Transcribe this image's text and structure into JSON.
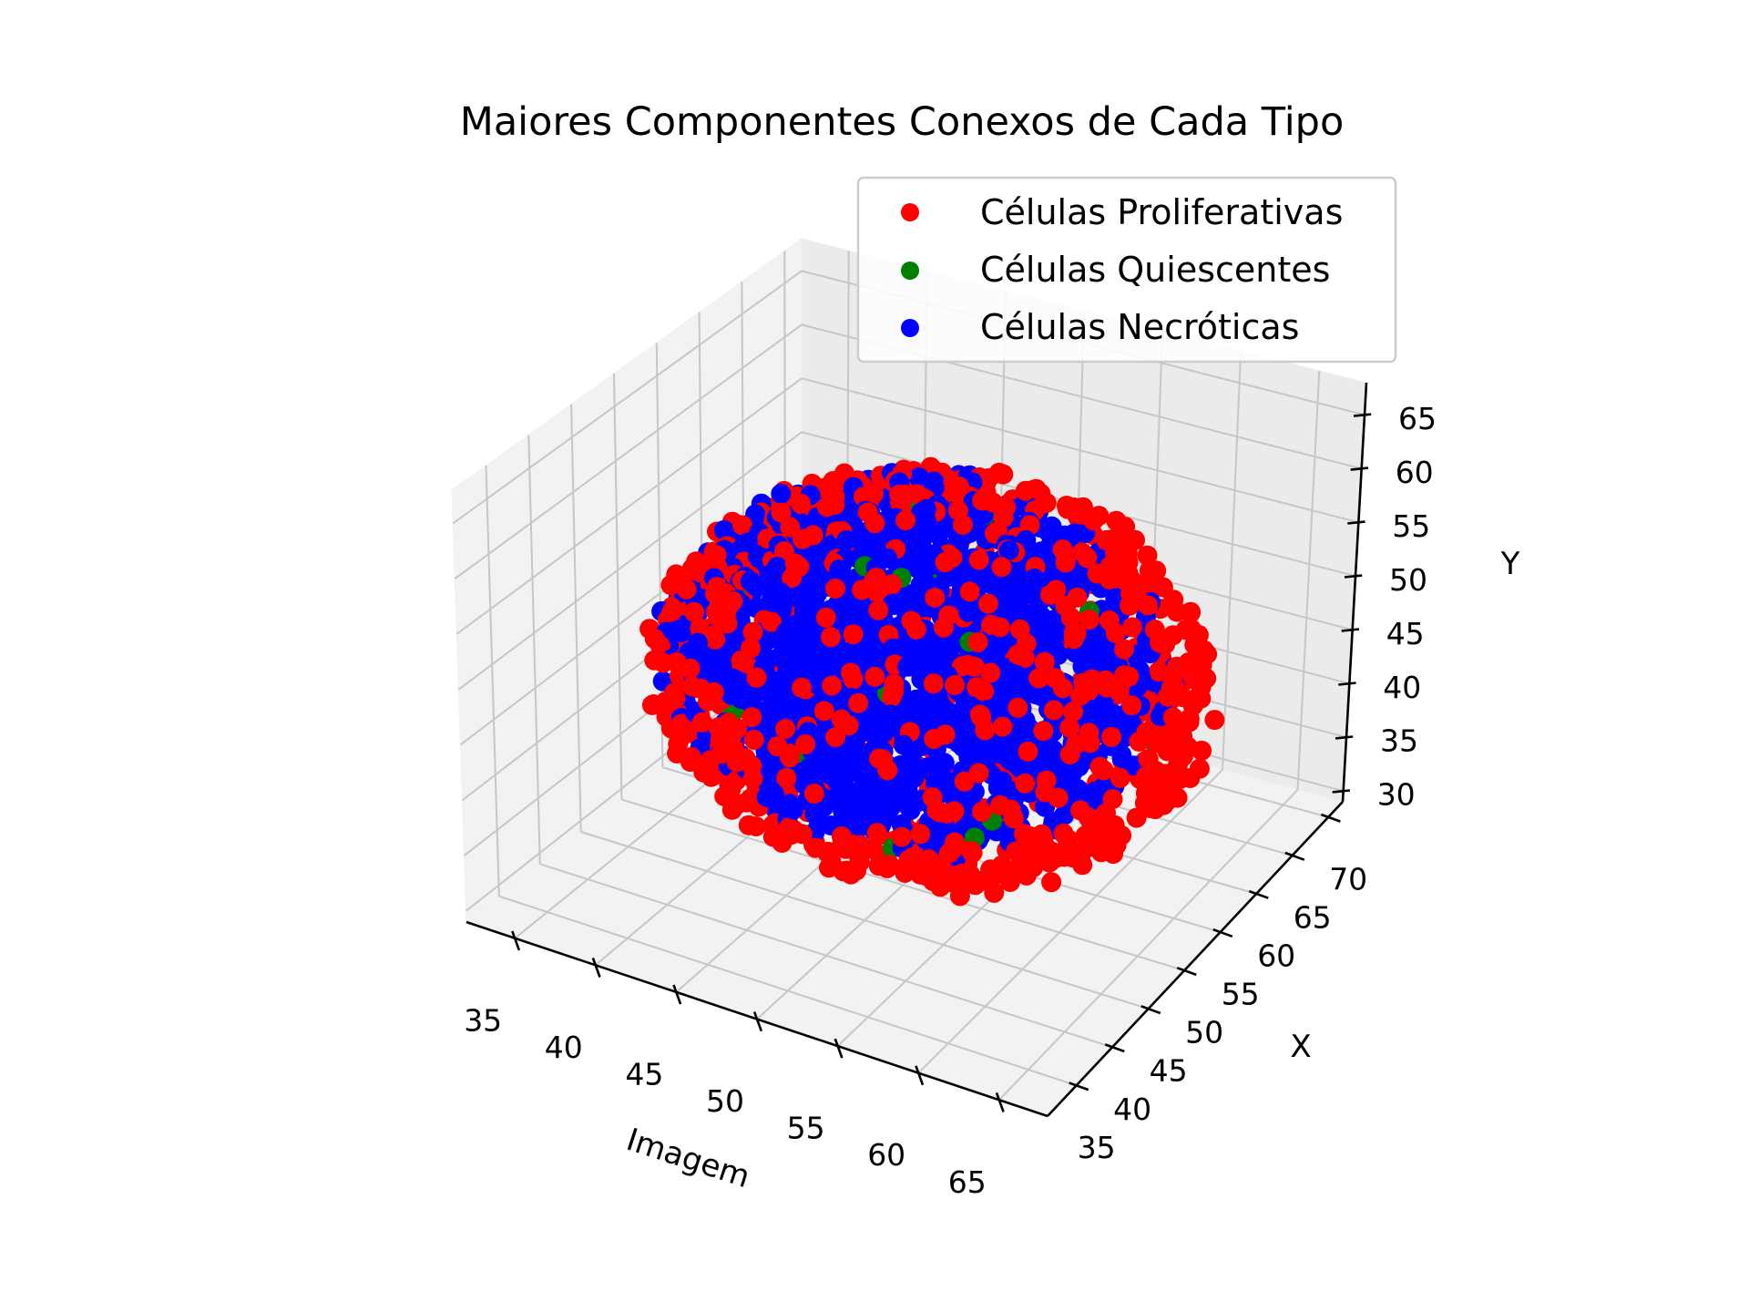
{
  "chart_data": {
    "type": "scatter",
    "projection": "3d",
    "title": "Maiores Componentes Conexos de Cada Tipo",
    "axes": {
      "x": {
        "label": "Imagem",
        "range": [
          32,
          68
        ],
        "ticks": [
          "35",
          "40",
          "45",
          "50",
          "55",
          "60",
          "65"
        ],
        "tick_values": [
          35,
          40,
          45,
          50,
          55,
          60,
          65
        ]
      },
      "y": {
        "label": "X",
        "range": [
          31,
          72
        ],
        "ticks": [
          "35",
          "40",
          "45",
          "50",
          "55",
          "60",
          "65",
          "70"
        ],
        "tick_values": [
          35,
          40,
          45,
          50,
          55,
          60,
          65,
          70
        ]
      },
      "z": {
        "label": "Y",
        "range": [
          29,
          68
        ],
        "ticks": [
          "30",
          "35",
          "40",
          "45",
          "50",
          "55",
          "60",
          "65"
        ],
        "tick_values": [
          30,
          35,
          40,
          45,
          50,
          55,
          60,
          65
        ]
      }
    },
    "grid": true,
    "legend_position": "top-right",
    "series": [
      {
        "name": "Células Proliferativas",
        "color": "#ff0000",
        "shape": "roughly spherical shell of points",
        "center": [
          51,
          52,
          47
        ],
        "radius": 16,
        "approx_count": 1700
      },
      {
        "name": "Células Quiescentes",
        "color": "#008000",
        "shape": "thin layer of points, mostly hidden",
        "center": [
          51,
          52,
          47
        ],
        "radius": 14,
        "approx_count": 40
      },
      {
        "name": "Células Necróticas",
        "color": "#0000ff",
        "shape": "dense roughly spherical cluster of points",
        "center": [
          50,
          52,
          48
        ],
        "radius": 15,
        "approx_count": 2600
      }
    ]
  }
}
